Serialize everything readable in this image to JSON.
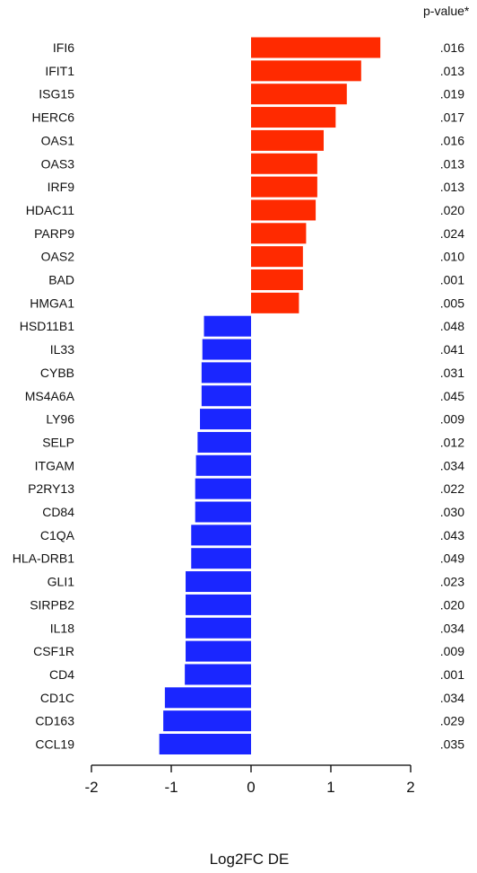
{
  "chart_data": {
    "type": "bar",
    "orientation": "horizontal",
    "xlabel": "Log2FC DE",
    "xlim": [
      -2,
      2
    ],
    "xticks": [
      "-2",
      "-1",
      "0",
      "1",
      "2"
    ],
    "pvalue_header": "p-value*",
    "colors": {
      "up": "#ff2a00",
      "down": "#1a26ff"
    },
    "genes": [
      {
        "gene": "IFI6",
        "log2fc": 1.62,
        "pvalue": ".016"
      },
      {
        "gene": "IFIT1",
        "log2fc": 1.38,
        "pvalue": ".013"
      },
      {
        "gene": "ISG15",
        "log2fc": 1.2,
        "pvalue": ".019"
      },
      {
        "gene": "HERC6",
        "log2fc": 1.06,
        "pvalue": ".017"
      },
      {
        "gene": "OAS1",
        "log2fc": 0.91,
        "pvalue": ".016"
      },
      {
        "gene": "OAS3",
        "log2fc": 0.83,
        "pvalue": ".013"
      },
      {
        "gene": "IRF9",
        "log2fc": 0.83,
        "pvalue": ".013"
      },
      {
        "gene": "HDAC11",
        "log2fc": 0.81,
        "pvalue": ".020"
      },
      {
        "gene": "PARP9",
        "log2fc": 0.69,
        "pvalue": ".024"
      },
      {
        "gene": "OAS2",
        "log2fc": 0.65,
        "pvalue": ".010"
      },
      {
        "gene": "BAD",
        "log2fc": 0.65,
        "pvalue": ".001"
      },
      {
        "gene": "HMGA1",
        "log2fc": 0.6,
        "pvalue": ".005"
      },
      {
        "gene": "HSD11B1",
        "log2fc": -0.59,
        "pvalue": ".048"
      },
      {
        "gene": "IL33",
        "log2fc": -0.61,
        "pvalue": ".041"
      },
      {
        "gene": "CYBB",
        "log2fc": -0.62,
        "pvalue": ".031"
      },
      {
        "gene": "MS4A6A",
        "log2fc": -0.62,
        "pvalue": ".045"
      },
      {
        "gene": "LY96",
        "log2fc": -0.64,
        "pvalue": ".009"
      },
      {
        "gene": "SELP",
        "log2fc": -0.67,
        "pvalue": ".012"
      },
      {
        "gene": "ITGAM",
        "log2fc": -0.69,
        "pvalue": ".034"
      },
      {
        "gene": "P2RY13",
        "log2fc": -0.7,
        "pvalue": ".022"
      },
      {
        "gene": "CD84",
        "log2fc": -0.7,
        "pvalue": ".030"
      },
      {
        "gene": "C1QA",
        "log2fc": -0.75,
        "pvalue": ".043"
      },
      {
        "gene": "HLA-DRB1",
        "log2fc": -0.75,
        "pvalue": ".049"
      },
      {
        "gene": "GLI1",
        "log2fc": -0.82,
        "pvalue": ".023"
      },
      {
        "gene": "SIRPB2",
        "log2fc": -0.82,
        "pvalue": ".020"
      },
      {
        "gene": "IL18",
        "log2fc": -0.82,
        "pvalue": ".034"
      },
      {
        "gene": "CSF1R",
        "log2fc": -0.82,
        "pvalue": ".009"
      },
      {
        "gene": "CD4",
        "log2fc": -0.83,
        "pvalue": ".001"
      },
      {
        "gene": "CD1C",
        "log2fc": -1.08,
        "pvalue": ".034"
      },
      {
        "gene": "CD163",
        "log2fc": -1.1,
        "pvalue": ".029"
      },
      {
        "gene": "CCL19",
        "log2fc": -1.15,
        "pvalue": ".035"
      }
    ]
  }
}
